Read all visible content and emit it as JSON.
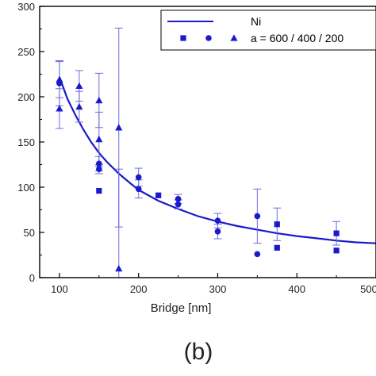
{
  "panel_label": "(b)",
  "colors": {
    "series": "#1a1acc",
    "error": "#6a6ae0",
    "axis": "#000000"
  },
  "chart_data": {
    "type": "scatter",
    "xlabel": "Bridge [nm]",
    "ylabel": "",
    "xlim": [
      75,
      500
    ],
    "ylim": [
      0,
      300
    ],
    "x_ticks": [
      100,
      200,
      300,
      400,
      500
    ],
    "x_tick_labels": [
      "100",
      "200",
      "300",
      "400",
      "500"
    ],
    "y_ticks": [
      0,
      50,
      100,
      150,
      200,
      250,
      300
    ],
    "y_tick_labels": [
      "0",
      "50",
      "100",
      "150",
      "200",
      "250",
      "300"
    ],
    "grid": false,
    "legend_position": "top-right",
    "legend": {
      "line_label": "Ni",
      "markers_label": "a = 600 / 400 / 200"
    },
    "fit_curve": {
      "name": "Ni",
      "x": [
        100,
        110,
        120,
        130,
        140,
        150,
        160,
        175,
        190,
        200,
        225,
        250,
        275,
        300,
        325,
        350,
        375,
        400,
        425,
        450,
        475,
        500
      ],
      "y": [
        222,
        198,
        180,
        164,
        150,
        138,
        128,
        115,
        104,
        97,
        85,
        76,
        68,
        62,
        57,
        53,
        49,
        46,
        43.5,
        41,
        39,
        38
      ]
    },
    "series": [
      {
        "marker": "square",
        "points": [
          {
            "x": 150,
            "y": 96,
            "err": 0
          },
          {
            "x": 225,
            "y": 91,
            "err": 0
          },
          {
            "x": 375,
            "y": 33,
            "err": 0
          },
          {
            "x": 375,
            "y": 59,
            "err": 18
          },
          {
            "x": 450,
            "y": 30,
            "err": 0
          },
          {
            "x": 450,
            "y": 49,
            "err": 13
          }
        ]
      },
      {
        "marker": "circle",
        "points": [
          {
            "x": 100,
            "y": 215,
            "err": 25
          },
          {
            "x": 150,
            "y": 126,
            "err": 8
          },
          {
            "x": 150,
            "y": 120,
            "err": 5
          },
          {
            "x": 200,
            "y": 111,
            "err": 10
          },
          {
            "x": 200,
            "y": 98,
            "err": 10
          },
          {
            "x": 250,
            "y": 87,
            "err": 5
          },
          {
            "x": 250,
            "y": 81,
            "err": 5
          },
          {
            "x": 300,
            "y": 63,
            "err": 8
          },
          {
            "x": 300,
            "y": 51,
            "err": 8
          },
          {
            "x": 350,
            "y": 68,
            "err": 30
          },
          {
            "x": 350,
            "y": 26,
            "err": 0
          }
        ]
      },
      {
        "marker": "triangle",
        "points": [
          {
            "x": 100,
            "y": 219,
            "err": 20
          },
          {
            "x": 100,
            "y": 187,
            "err": 22
          },
          {
            "x": 125,
            "y": 212,
            "err": 17
          },
          {
            "x": 125,
            "y": 189,
            "err": 17
          },
          {
            "x": 150,
            "y": 196,
            "err": 30
          },
          {
            "x": 150,
            "y": 153,
            "err": 30
          },
          {
            "x": 175,
            "y": 166,
            "err": 110
          },
          {
            "x": 175,
            "y": 10,
            "err": 110
          }
        ]
      }
    ]
  }
}
